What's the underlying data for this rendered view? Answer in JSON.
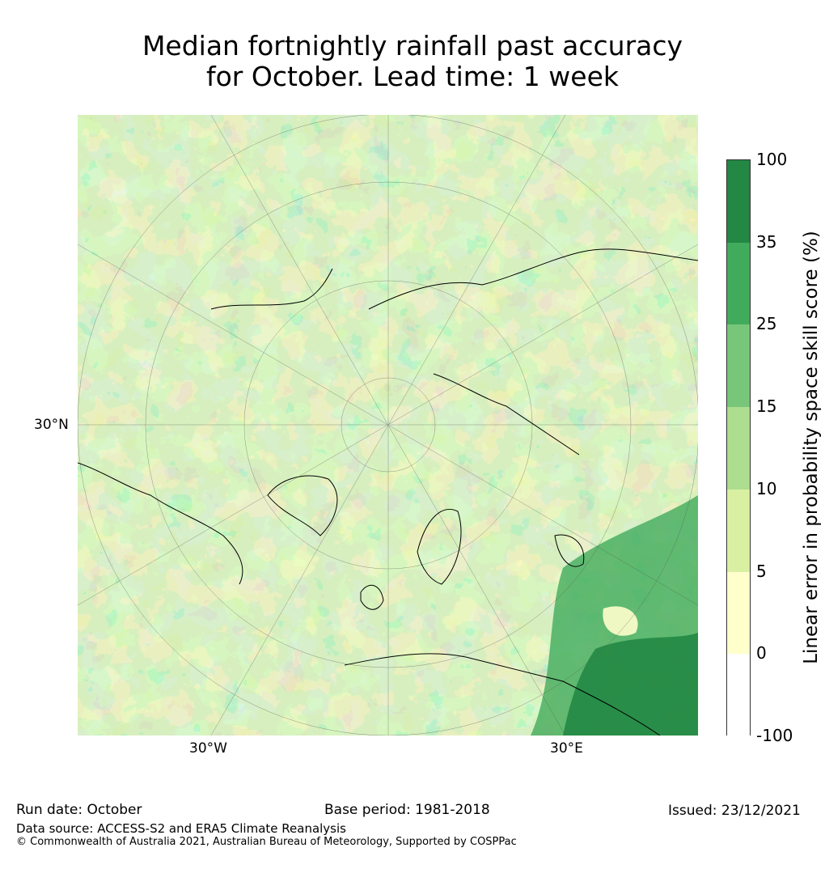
{
  "title_line1": "Median fortnightly rainfall past accuracy",
  "title_line2": "for October. Lead time: 1 week",
  "axis_labels": {
    "lat": "30°N",
    "lon_west": "30°W",
    "lon_east": "30°E"
  },
  "colorbar": {
    "label": "Linear error in probability space skill score (%)",
    "ticks": [
      "100",
      "35",
      "25",
      "15",
      "10",
      "5",
      "0",
      "-100"
    ],
    "colors": [
      "#228844",
      "#41ab5d",
      "#78c679",
      "#addd8e",
      "#d9f0a3",
      "#ffffcc",
      "#ffffff"
    ],
    "levels": [
      100,
      35,
      25,
      15,
      10,
      5,
      0,
      -100
    ]
  },
  "footer": {
    "run_date": "Run date: October",
    "base_period": "Base period: 1981-2018",
    "issued": "Issued: 23/12/2021",
    "data_source": "Data source: ACCESS-S2 and ERA5 Climate Reanalysis",
    "copyright": "© Commonwealth of Australia 2021, Australian Bureau of Meteorology, Supported by COSPPac"
  }
}
